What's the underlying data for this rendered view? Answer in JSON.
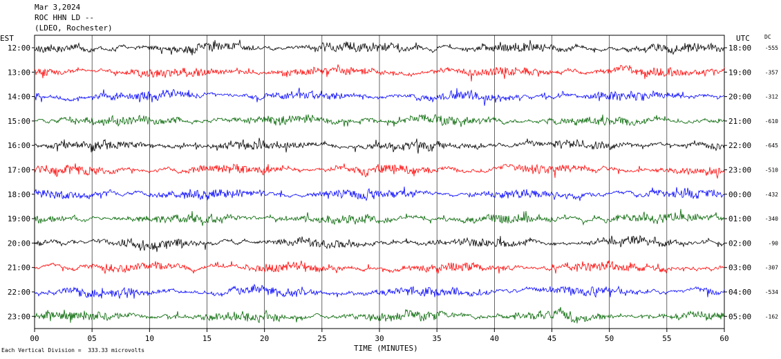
{
  "header": {
    "date": "Mar 3,2024",
    "station": "ROC HHN LD --",
    "network": "(LDEO, Rochester)"
  },
  "labels": {
    "left_tz": "EST",
    "right_tz": "UTC",
    "dc": "DC",
    "footer": "Each Vertical Division =  333.33 microvolts"
  },
  "colors": {
    "cycle": [
      "#000000",
      "#ff0000",
      "#0000ff",
      "#006400"
    ],
    "grid": "#000000"
  },
  "chart_data": {
    "type": "line",
    "title": "",
    "xlabel": "TIME (MINUTES)",
    "ylabel": "",
    "xlim": [
      0,
      60
    ],
    "x_ticks": [
      "00",
      "05",
      "10",
      "15",
      "20",
      "25",
      "30",
      "35",
      "40",
      "45",
      "50",
      "55",
      "60"
    ],
    "rows": [
      {
        "local": "12:00",
        "utc": "18:00",
        "dc": "-555"
      },
      {
        "local": "13:00",
        "utc": "19:00",
        "dc": "-357"
      },
      {
        "local": "14:00",
        "utc": "20:00",
        "dc": "-312"
      },
      {
        "local": "15:00",
        "utc": "21:00",
        "dc": "-610"
      },
      {
        "local": "16:00",
        "utc": "22:00",
        "dc": "-645"
      },
      {
        "local": "17:00",
        "utc": "23:00",
        "dc": "-510"
      },
      {
        "local": "18:00",
        "utc": "00:00",
        "dc": "-432"
      },
      {
        "local": "19:00",
        "utc": "01:00",
        "dc": "-340"
      },
      {
        "local": "20:00",
        "utc": "02:00",
        "dc": "-90"
      },
      {
        "local": "21:00",
        "utc": "03:00",
        "dc": "-307"
      },
      {
        "local": "22:00",
        "utc": "04:00",
        "dc": "-534"
      },
      {
        "local": "23:00",
        "utc": "05:00",
        "dc": "-162"
      }
    ]
  }
}
